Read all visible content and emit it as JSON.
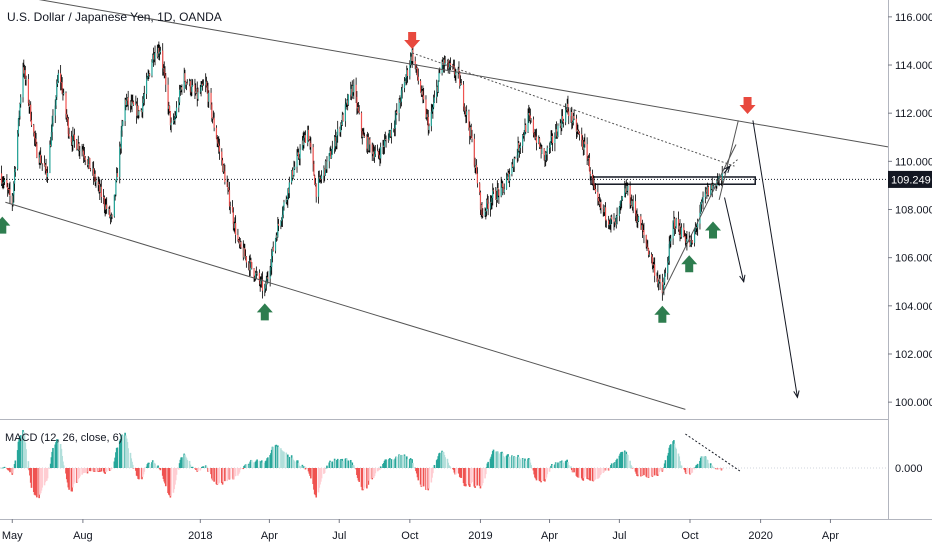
{
  "chart_data": {
    "type": "candlestick",
    "title": "U.S. Dollar / Japanese Yen, 1D, OANDA",
    "y_axis": {
      "ticks": [
        "116.000",
        "114.000",
        "112.000",
        "110.000",
        "108.000",
        "106.000",
        "104.000",
        "102.000",
        "100.000"
      ],
      "tick_values": [
        116,
        114,
        112,
        110,
        108,
        106,
        104,
        102,
        100
      ],
      "ylim": [
        99.3,
        116.7
      ],
      "current_price_label": "109.249",
      "current_price": 109.249
    },
    "x_axis": {
      "ticks": [
        "May",
        "Aug",
        "2018",
        "Apr",
        "Jul",
        "Oct",
        "2019",
        "Apr",
        "Jul",
        "Oct",
        "2020",
        "Apr"
      ],
      "tick_dates": [
        "2017-05-01",
        "2017-08-01",
        "2018-01-01",
        "2018-04-01",
        "2018-07-01",
        "2018-10-01",
        "2019-01-01",
        "2019-04-01",
        "2019-07-01",
        "2019-10-01",
        "2020-01-01",
        "2020-04-01"
      ],
      "xlim": [
        "2017-04-15",
        "2020-06-15"
      ]
    },
    "price_path": [
      [
        "2017-04-15",
        109.5
      ],
      [
        "2017-05-01",
        108.3
      ],
      [
        "2017-05-15",
        114.0
      ],
      [
        "2017-06-01",
        110.5
      ],
      [
        "2017-06-15",
        109.5
      ],
      [
        "2017-07-01",
        113.8
      ],
      [
        "2017-07-15",
        111.0
      ],
      [
        "2017-08-01",
        110.5
      ],
      [
        "2017-09-08",
        107.5
      ],
      [
        "2017-09-25",
        112.5
      ],
      [
        "2017-10-15",
        112.0
      ],
      [
        "2017-11-01",
        114.5
      ],
      [
        "2017-11-10",
        114.7
      ],
      [
        "2017-11-25",
        111.2
      ],
      [
        "2017-12-10",
        113.5
      ],
      [
        "2017-12-28",
        112.7
      ],
      [
        "2018-01-08",
        113.2
      ],
      [
        "2018-02-01",
        109.5
      ],
      [
        "2018-02-20",
        106.5
      ],
      [
        "2018-03-05",
        105.8
      ],
      [
        "2018-03-26",
        104.6
      ],
      [
        "2018-04-10",
        107.0
      ],
      [
        "2018-05-01",
        109.5
      ],
      [
        "2018-05-21",
        111.3
      ],
      [
        "2018-06-01",
        108.8
      ],
      [
        "2018-06-20",
        110.3
      ],
      [
        "2018-07-19",
        113.1
      ],
      [
        "2018-08-01",
        111.0
      ],
      [
        "2018-08-20",
        110.2
      ],
      [
        "2018-09-10",
        111.5
      ],
      [
        "2018-10-04",
        114.5
      ],
      [
        "2018-10-26",
        111.4
      ],
      [
        "2018-11-12",
        114.1
      ],
      [
        "2018-12-03",
        113.6
      ],
      [
        "2018-12-20",
        111.0
      ],
      [
        "2019-01-03",
        107.8
      ],
      [
        "2019-01-15",
        108.5
      ],
      [
        "2019-02-01",
        108.9
      ],
      [
        "2019-03-05",
        111.8
      ],
      [
        "2019-03-25",
        110.1
      ],
      [
        "2019-04-24",
        112.2
      ],
      [
        "2019-05-20",
        110.3
      ],
      [
        "2019-06-01",
        108.3
      ],
      [
        "2019-06-25",
        107.3
      ],
      [
        "2019-07-10",
        108.9
      ],
      [
        "2019-08-01",
        107.0
      ],
      [
        "2019-08-26",
        104.5
      ],
      [
        "2019-09-10",
        107.5
      ],
      [
        "2019-10-03",
        106.5
      ],
      [
        "2019-10-20",
        108.6
      ],
      [
        "2019-11-05",
        109.2
      ],
      [
        "2019-11-12",
        109.249
      ]
    ],
    "macd": {
      "label": "MACD (12, 26, close, 6)",
      "params": [
        12,
        26,
        "close",
        6
      ],
      "zero_label": "0.000",
      "zero_value": 0,
      "colors": {
        "positive": "#26a69a",
        "negative": "#ef5350"
      }
    },
    "annotations": {
      "trend_lines": [
        {
          "style": "solid",
          "points": [
            [
              "2017-04-15",
              117.0
            ],
            [
              "2020-06-15",
              110.6
            ]
          ]
        },
        {
          "style": "solid",
          "points": [
            [
              "2017-04-22",
              108.3
            ],
            [
              "2019-09-25",
              99.7
            ]
          ]
        },
        {
          "style": "dotted",
          "points": [
            [
              "2018-10-04",
              114.5
            ],
            [
              "2019-11-28",
              109.8
            ]
          ]
        },
        {
          "style": "solid",
          "points": [
            [
              "2019-08-26",
              104.5
            ],
            [
              "2019-11-30",
              110.7
            ]
          ]
        },
        {
          "style": "solid",
          "points": [
            [
              "2019-11-08",
              108.4
            ],
            [
              "2019-12-03",
              111.7
            ]
          ]
        },
        {
          "style": "dotted",
          "points": [
            [
              "2019-11-18",
              109.7
            ],
            [
              "2019-12-03",
              110.1
            ]
          ]
        }
      ],
      "horizontal_levels": [
        109.249
      ],
      "resistance_box": {
        "x0": "2019-05-25",
        "x1": "2019-12-25",
        "y0": 109.05,
        "y1": 109.35
      },
      "projection_arrows": [
        {
          "from": [
            "2019-11-15",
            108.5
          ],
          "to": [
            "2019-12-10",
            105.0
          ]
        },
        {
          "from": [
            "2019-12-22",
            111.7
          ],
          "to": [
            "2020-02-18",
            100.2
          ]
        },
        {
          "from": [
            "2019-11-14",
            109.5
          ],
          "to": [
            "2019-11-22",
            109.8
          ]
        }
      ],
      "markers_up": [
        {
          "date": "2017-04-18",
          "price": 108.2
        },
        {
          "date": "2018-03-26",
          "price": 104.6
        },
        {
          "date": "2019-08-26",
          "price": 104.5
        },
        {
          "date": "2019-09-30",
          "price": 106.6
        },
        {
          "date": "2019-10-31",
          "price": 108.0
        }
      ],
      "markers_down": [
        {
          "date": "2018-10-04",
          "price": 114.5
        },
        {
          "date": "2019-12-15",
          "price": 111.8
        }
      ]
    },
    "colors": {
      "up": "#26a69a",
      "down": "#ef5350",
      "candle_wick": "#000000",
      "marker_up": "#2e7d4f",
      "marker_down": "#e8493e",
      "trend_line": "#555555",
      "price_label_bg": "#131722"
    },
    "grid": false,
    "legend": "none"
  }
}
